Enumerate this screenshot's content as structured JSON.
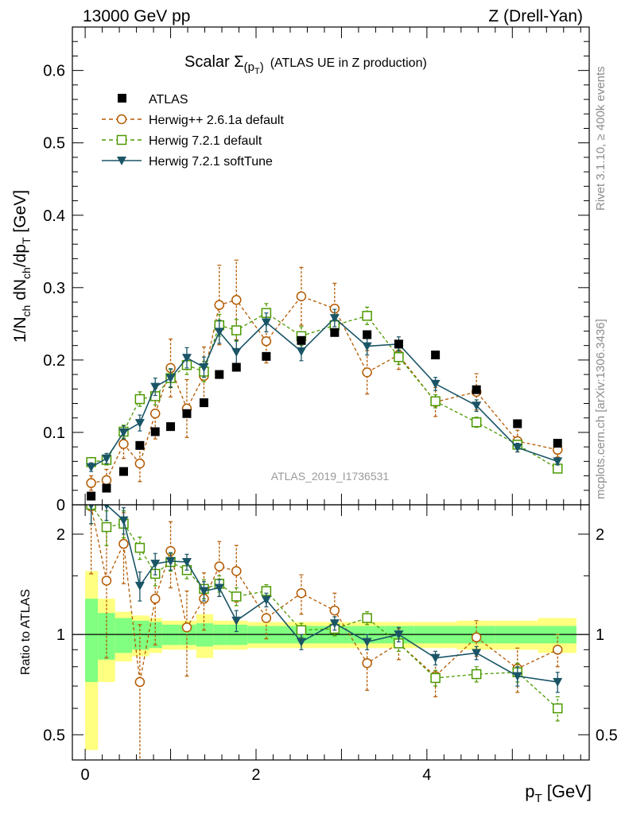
{
  "header": {
    "left": "13000 GeV pp",
    "right": "Z (Drell-Yan)"
  },
  "side": {
    "rivet": "Rivet 3.1.10, ≥ 400k events",
    "mcplots": "mcplots.cern.ch [arXiv:1306.3436]"
  },
  "colors": {
    "atlas": "#000000",
    "herwigpp": "#b35900",
    "herwig721": "#4c9900",
    "softtune": "#1a5566",
    "band_inner": "#80ff80",
    "band_outer": "#ffff80"
  },
  "chart_data": [
    {
      "type": "scatter",
      "panel": "main",
      "title_main": "Scalar Σ",
      "title_sub": "(p",
      "title_subsub": "T",
      "title_close": ")",
      "title_tail": "(ATLAS UE in Z production)",
      "watermark": "ATLAS_2019_I1736531",
      "ylabel": "1/N_ch dN_ch/dp_T [GeV]",
      "ylabel_parts": {
        "a": "1/N",
        "a_sub": "ch",
        "b": " dN",
        "b_sub": "ch",
        "c": "/dp",
        "c_sub": "T",
        "d": " [GeV]"
      },
      "xlabel": "p_T [GeV]",
      "xlabel_parts": {
        "a": "p",
        "a_sub": "T",
        "b": " [GeV]"
      },
      "xlim": [
        -0.15,
        5.9
      ],
      "ylim": [
        0,
        0.66
      ],
      "yticks": [
        0,
        0.1,
        0.2,
        0.3,
        0.4,
        0.5,
        0.6
      ],
      "ytick_labels": [
        "0",
        "0.1",
        "0.2",
        "0.3",
        "0.4",
        "0.5",
        "0.6"
      ],
      "legend_position": "top-left",
      "series": [
        {
          "name": "ATLAS",
          "key": "atlas",
          "x": [
            0.07,
            0.25,
            0.45,
            0.64,
            0.82,
            1.0,
            1.19,
            1.39,
            1.57,
            1.77,
            2.12,
            2.53,
            2.92,
            3.3,
            3.67,
            4.1,
            4.58,
            5.06,
            5.53
          ],
          "y": [
            0.012,
            0.023,
            0.046,
            0.082,
            0.101,
            0.108,
            0.126,
            0.141,
            0.18,
            0.19,
            0.205,
            0.227,
            0.238,
            0.235,
            0.222,
            0.207,
            0.159,
            0.112,
            0.085
          ],
          "err": [
            0.002,
            0.002,
            0.002,
            0.003,
            0.003,
            0.003,
            0.003,
            0.004,
            0.004,
            0.004,
            0.004,
            0.004,
            0.004,
            0.004,
            0.004,
            0.004,
            0.003,
            0.003,
            0.003
          ]
        },
        {
          "name": "Herwig++ 2.6.1a default",
          "key": "herwigpp",
          "x": [
            0.07,
            0.25,
            0.45,
            0.64,
            0.82,
            1.0,
            1.19,
            1.39,
            1.57,
            1.77,
            2.12,
            2.53,
            2.92,
            3.3,
            3.67,
            4.1,
            4.58,
            5.06,
            5.53
          ],
          "y": [
            0.03,
            0.034,
            0.084,
            0.057,
            0.126,
            0.189,
            0.133,
            0.178,
            0.276,
            0.283,
            0.226,
            0.288,
            0.271,
            0.183,
            0.207,
            0.142,
            0.156,
            0.088,
            0.076
          ],
          "err": [
            0.01,
            0.015,
            0.02,
            0.025,
            0.035,
            0.04,
            0.04,
            0.04,
            0.055,
            0.055,
            0.03,
            0.04,
            0.035,
            0.03,
            0.02,
            0.02,
            0.025,
            0.015,
            0.01
          ]
        },
        {
          "name": "Herwig 7.2.1 default",
          "key": "herwig721",
          "x": [
            0.07,
            0.25,
            0.45,
            0.64,
            0.82,
            1.0,
            1.19,
            1.39,
            1.57,
            1.77,
            2.12,
            2.53,
            2.92,
            3.3,
            3.67,
            4.1,
            4.58,
            5.06,
            5.53
          ],
          "y": [
            0.059,
            0.062,
            0.101,
            0.146,
            0.15,
            0.175,
            0.193,
            0.184,
            0.248,
            0.241,
            0.265,
            0.233,
            0.248,
            0.261,
            0.204,
            0.143,
            0.114,
            0.083,
            0.05
          ],
          "err": [
            0.006,
            0.007,
            0.009,
            0.01,
            0.012,
            0.012,
            0.013,
            0.014,
            0.015,
            0.015,
            0.013,
            0.013,
            0.012,
            0.012,
            0.01,
            0.009,
            0.007,
            0.006,
            0.005
          ]
        },
        {
          "name": "Herwig 7.2.1 softTune",
          "key": "softtune",
          "x": [
            0.07,
            0.25,
            0.45,
            0.64,
            0.82,
            1.0,
            1.19,
            1.39,
            1.57,
            1.77,
            2.12,
            2.53,
            2.92,
            3.3,
            3.67,
            4.1,
            4.58,
            5.06,
            5.53
          ],
          "y": [
            0.052,
            0.064,
            0.1,
            0.113,
            0.163,
            0.175,
            0.203,
            0.19,
            0.239,
            0.211,
            0.252,
            0.212,
            0.258,
            0.219,
            0.222,
            0.167,
            0.137,
            0.079,
            0.06
          ],
          "err": [
            0.006,
            0.007,
            0.009,
            0.011,
            0.012,
            0.013,
            0.014,
            0.014,
            0.016,
            0.016,
            0.013,
            0.013,
            0.012,
            0.012,
            0.01,
            0.009,
            0.008,
            0.006,
            0.005
          ]
        }
      ]
    },
    {
      "type": "scatter",
      "panel": "ratio",
      "ylabel": "Ratio to ATLAS",
      "ylim": "log [0.42, 2.45]",
      "ylim_values": [
        0.42,
        2.45
      ],
      "yticks": [
        0.5,
        1,
        2
      ],
      "ytick_labels": [
        "0.5",
        "1",
        "2"
      ],
      "xticks": [
        0,
        2,
        4
      ],
      "xtick_labels": [
        "0",
        "2",
        "4"
      ],
      "band_bins": [
        0.0,
        0.15,
        0.35,
        0.55,
        0.75,
        0.9,
        1.1,
        1.3,
        1.5,
        1.65,
        1.9,
        2.35,
        2.75,
        3.1,
        3.5,
        3.85,
        4.35,
        4.8,
        5.3,
        5.75
      ],
      "band_inner_rel": [
        0.28,
        0.16,
        0.12,
        0.1,
        0.09,
        0.07,
        0.07,
        0.08,
        0.07,
        0.07,
        0.06,
        0.06,
        0.06,
        0.06,
        0.06,
        0.06,
        0.06,
        0.06,
        0.06
      ],
      "band_outer_rel": [
        0.55,
        0.28,
        0.17,
        0.14,
        0.12,
        0.1,
        0.1,
        0.15,
        0.1,
        0.1,
        0.09,
        0.09,
        0.09,
        0.09,
        0.09,
        0.09,
        0.1,
        0.1,
        0.12
      ],
      "series": [
        {
          "name": "Herwig++ 2.6.1a default",
          "key": "herwigpp",
          "y": [
            2.42,
            1.45,
            1.87,
            0.72,
            1.28,
            1.78,
            1.05,
            1.28,
            1.6,
            1.55,
            1.12,
            1.33,
            1.18,
            0.82,
            0.94,
            0.75,
            0.98,
            0.79,
            0.9
          ],
          "err": [
            0.9,
            0.6,
            0.45,
            0.35,
            0.35,
            0.4,
            0.3,
            0.25,
            0.3,
            0.3,
            0.15,
            0.18,
            0.15,
            0.14,
            0.1,
            0.1,
            0.12,
            0.12,
            0.1
          ]
        },
        {
          "name": "Herwig 7.2.1 default",
          "key": "herwig721",
          "y": [
            2.45,
            2.1,
            2.15,
            1.82,
            1.52,
            1.65,
            1.56,
            1.37,
            1.42,
            1.3,
            1.35,
            1.03,
            1.04,
            1.12,
            0.94,
            0.74,
            0.76,
            0.77,
            0.6
          ],
          "err": [
            0.3,
            0.25,
            0.2,
            0.14,
            0.12,
            0.1,
            0.09,
            0.09,
            0.08,
            0.08,
            0.06,
            0.05,
            0.05,
            0.05,
            0.05,
            0.04,
            0.04,
            0.05,
            0.05
          ]
        },
        {
          "name": "Herwig 7.2.1 softTune",
          "key": "softtune",
          "y": [
            2.45,
            2.45,
            2.2,
            1.4,
            1.63,
            1.66,
            1.65,
            1.35,
            1.38,
            1.1,
            1.27,
            0.95,
            1.08,
            0.95,
            1.0,
            0.85,
            0.88,
            0.75,
            0.72
          ],
          "err": [
            0.3,
            0.25,
            0.2,
            0.14,
            0.12,
            0.1,
            0.09,
            0.09,
            0.08,
            0.08,
            0.06,
            0.05,
            0.05,
            0.05,
            0.05,
            0.04,
            0.04,
            0.05,
            0.05
          ]
        }
      ]
    }
  ]
}
